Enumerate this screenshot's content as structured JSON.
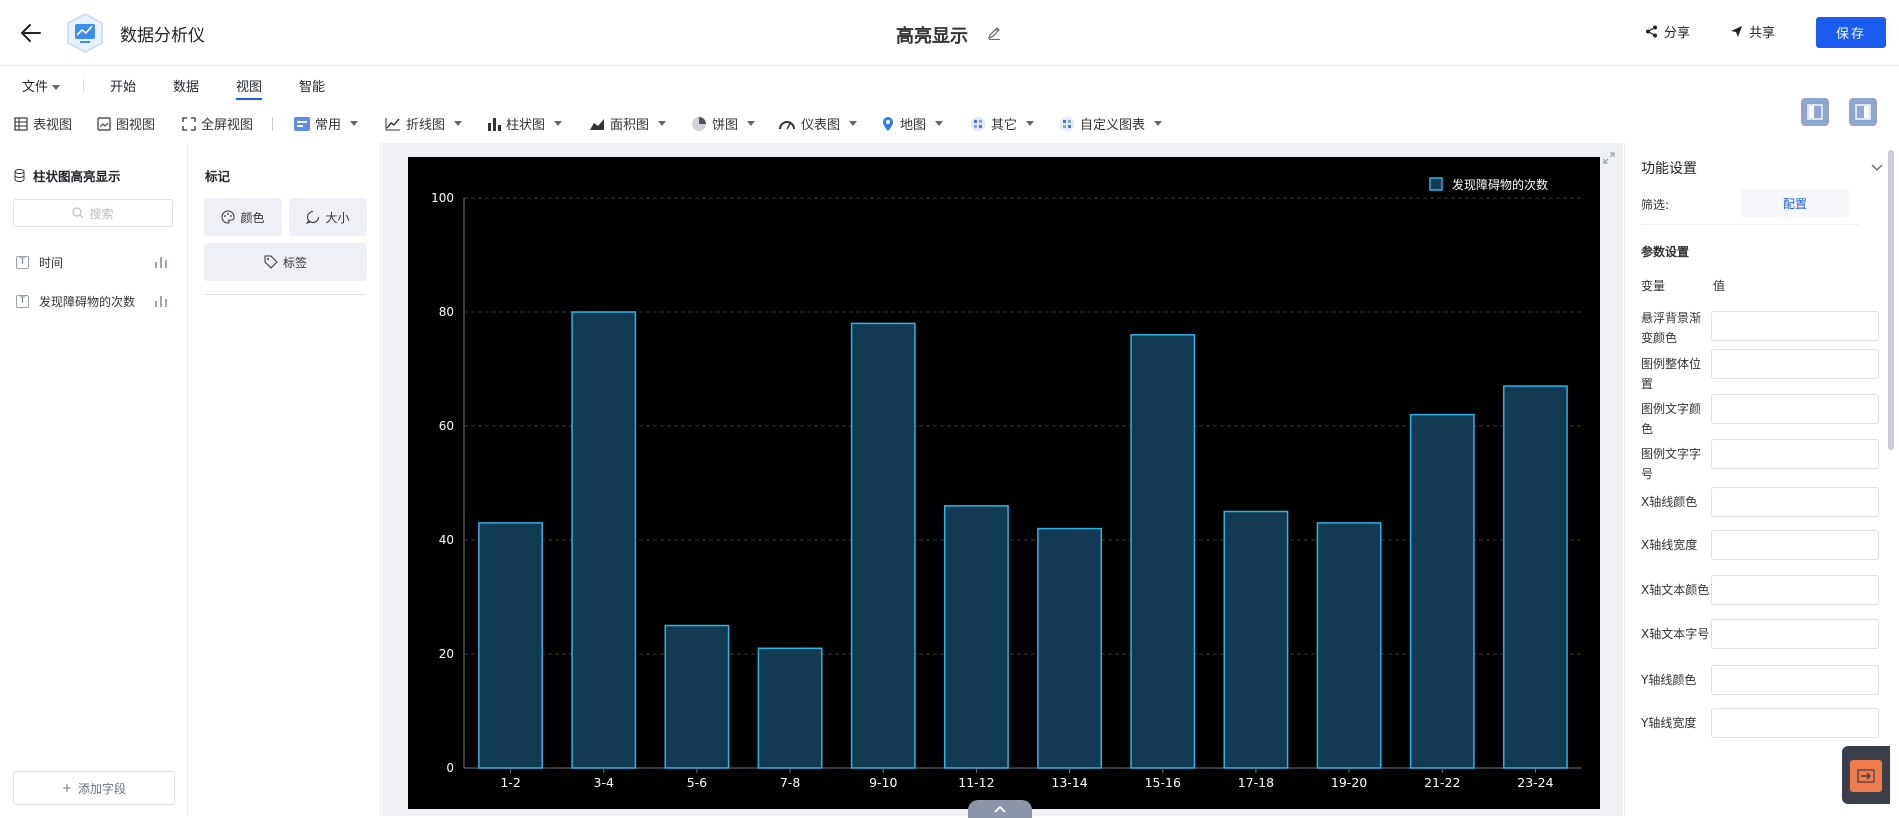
{
  "header": {
    "app_name": "数据分析仪",
    "doc_title": "高亮显示",
    "share_label": "分享",
    "send_label": "共享",
    "save_label": "保存"
  },
  "menu": [
    "文件",
    "开始",
    "数据",
    "视图",
    "智能"
  ],
  "toolbar": {
    "table_view": "表视图",
    "chart_view": "图视图",
    "fullscreen_view": "全屏视图",
    "common": "常用",
    "line": "折线图",
    "bar": "柱状图",
    "area": "面积图",
    "pie": "饼图",
    "gauge": "仪表图",
    "map": "地图",
    "other": "其它",
    "custom": "自定义图表"
  },
  "left_panel": {
    "dataset_title": "柱状图高亮显示",
    "search_placeholder": "搜索",
    "fields": [
      "时间",
      "发现障碍物的次数"
    ],
    "add_field": "添加字段"
  },
  "mark_panel": {
    "title": "标记",
    "color": "颜色",
    "size": "大小",
    "label": "标签"
  },
  "right_panel": {
    "title": "功能设置",
    "filter_label": "筛选:",
    "config_label": "配置",
    "section_title": "参数设置",
    "col_variable": "变量",
    "col_value": "值",
    "params": [
      "悬浮背景渐变颜色",
      "图例整体位置",
      "图例文字颜色",
      "图例文字字号",
      "X轴线颜色",
      "X轴线宽度",
      "X轴文本颜色",
      "X轴文本字号",
      "Y轴线颜色",
      "Y轴线宽度"
    ]
  },
  "colors": {
    "accent": "#1a5cf0",
    "chart_bg": "#000000",
    "bar_fill": "#123a52",
    "bar_stroke": "#2bb5e8"
  },
  "chart_data": {
    "type": "bar",
    "categories": [
      "1-2",
      "3-4",
      "5-6",
      "7-8",
      "9-10",
      "11-12",
      "13-14",
      "15-16",
      "17-18",
      "19-20",
      "21-22",
      "23-24"
    ],
    "series": [
      {
        "name": "发现障碍物的次数",
        "values": [
          43,
          80,
          25,
          21,
          78,
          46,
          42,
          76,
          45,
          43,
          62,
          67
        ]
      }
    ],
    "ylim": [
      0,
      100
    ],
    "yticks": [
      0,
      20,
      40,
      60,
      80,
      100
    ],
    "grid": true,
    "legend_position": "top-right"
  }
}
